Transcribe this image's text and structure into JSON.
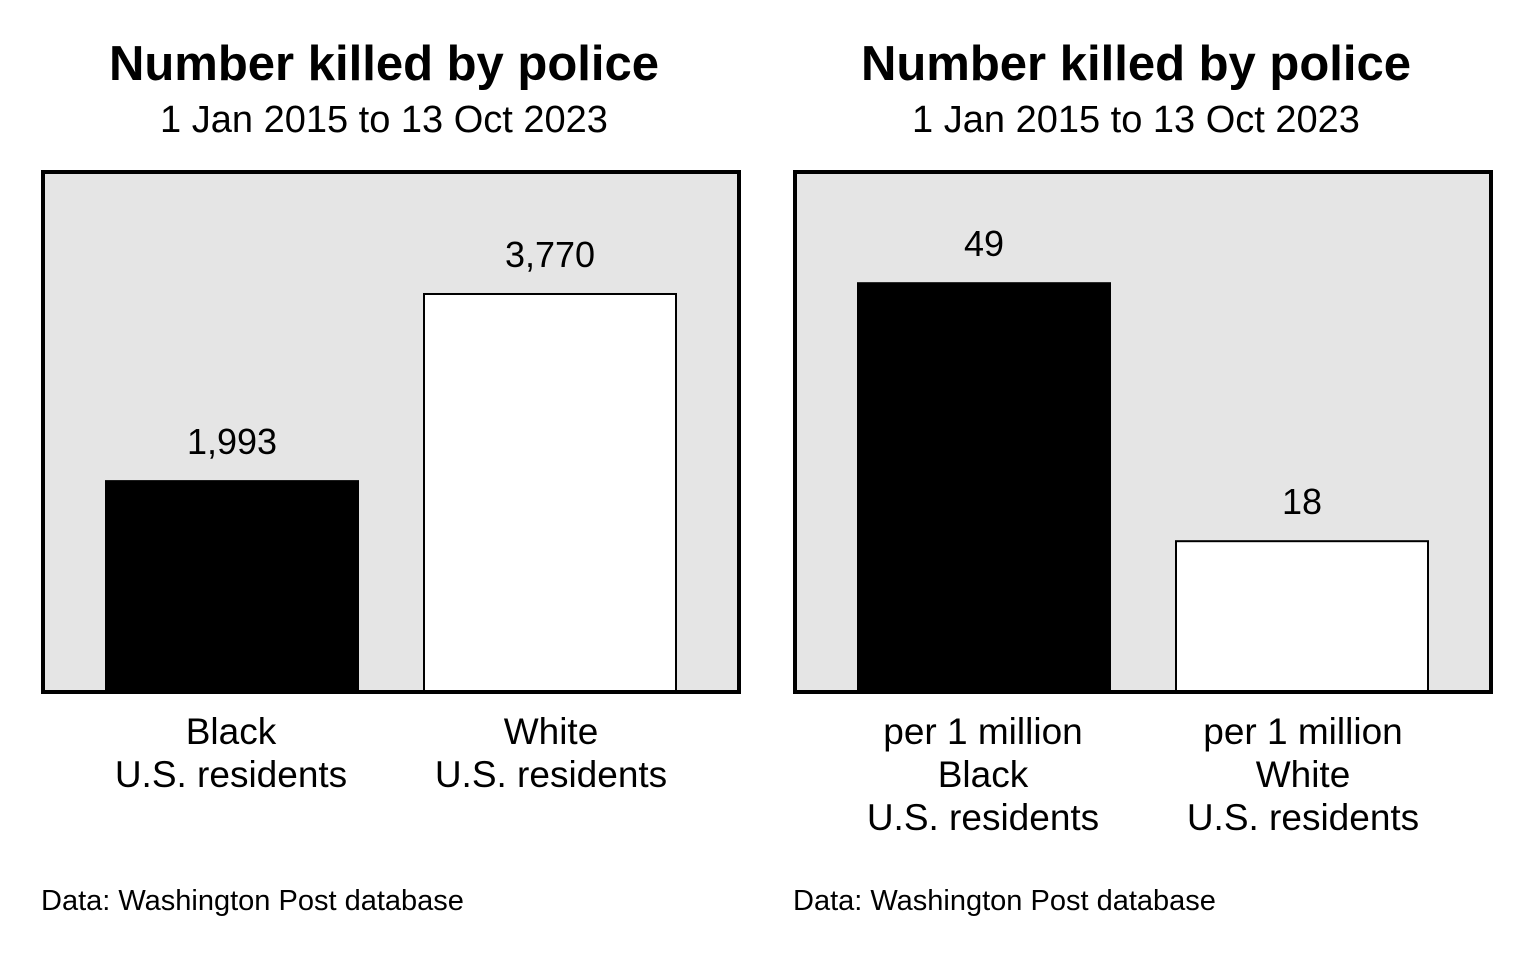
{
  "chart_data": [
    {
      "type": "bar",
      "title": "Number killed by police",
      "subtitle": "1 Jan 2015 to 13 Oct 2023",
      "categories": [
        "Black\nU.S. residents",
        "White\nU.S. residents"
      ],
      "values": [
        1993,
        3770
      ],
      "value_labels": [
        "1,993",
        "3,770"
      ],
      "bar_colors": [
        "#000000",
        "#ffffff"
      ],
      "ylim": [
        0,
        4900
      ],
      "xlabel": "",
      "ylabel": "",
      "grid": false,
      "background": "#e5e5e5",
      "source": "Data: Washington Post database"
    },
    {
      "type": "bar",
      "title": "Number killed by police",
      "subtitle": "1 Jan 2015 to 13 Oct 2023",
      "categories": [
        "per 1 million\nBlack\nU.S. residents",
        "per 1 million\nWhite\nU.S. residents"
      ],
      "values": [
        49,
        18
      ],
      "value_labels": [
        "49",
        "18"
      ],
      "bar_colors": [
        "#000000",
        "#ffffff"
      ],
      "ylim": [
        0,
        62
      ],
      "xlabel": "",
      "ylabel": "",
      "grid": false,
      "background": "#e5e5e5",
      "source": "Data: Washington Post database"
    }
  ]
}
